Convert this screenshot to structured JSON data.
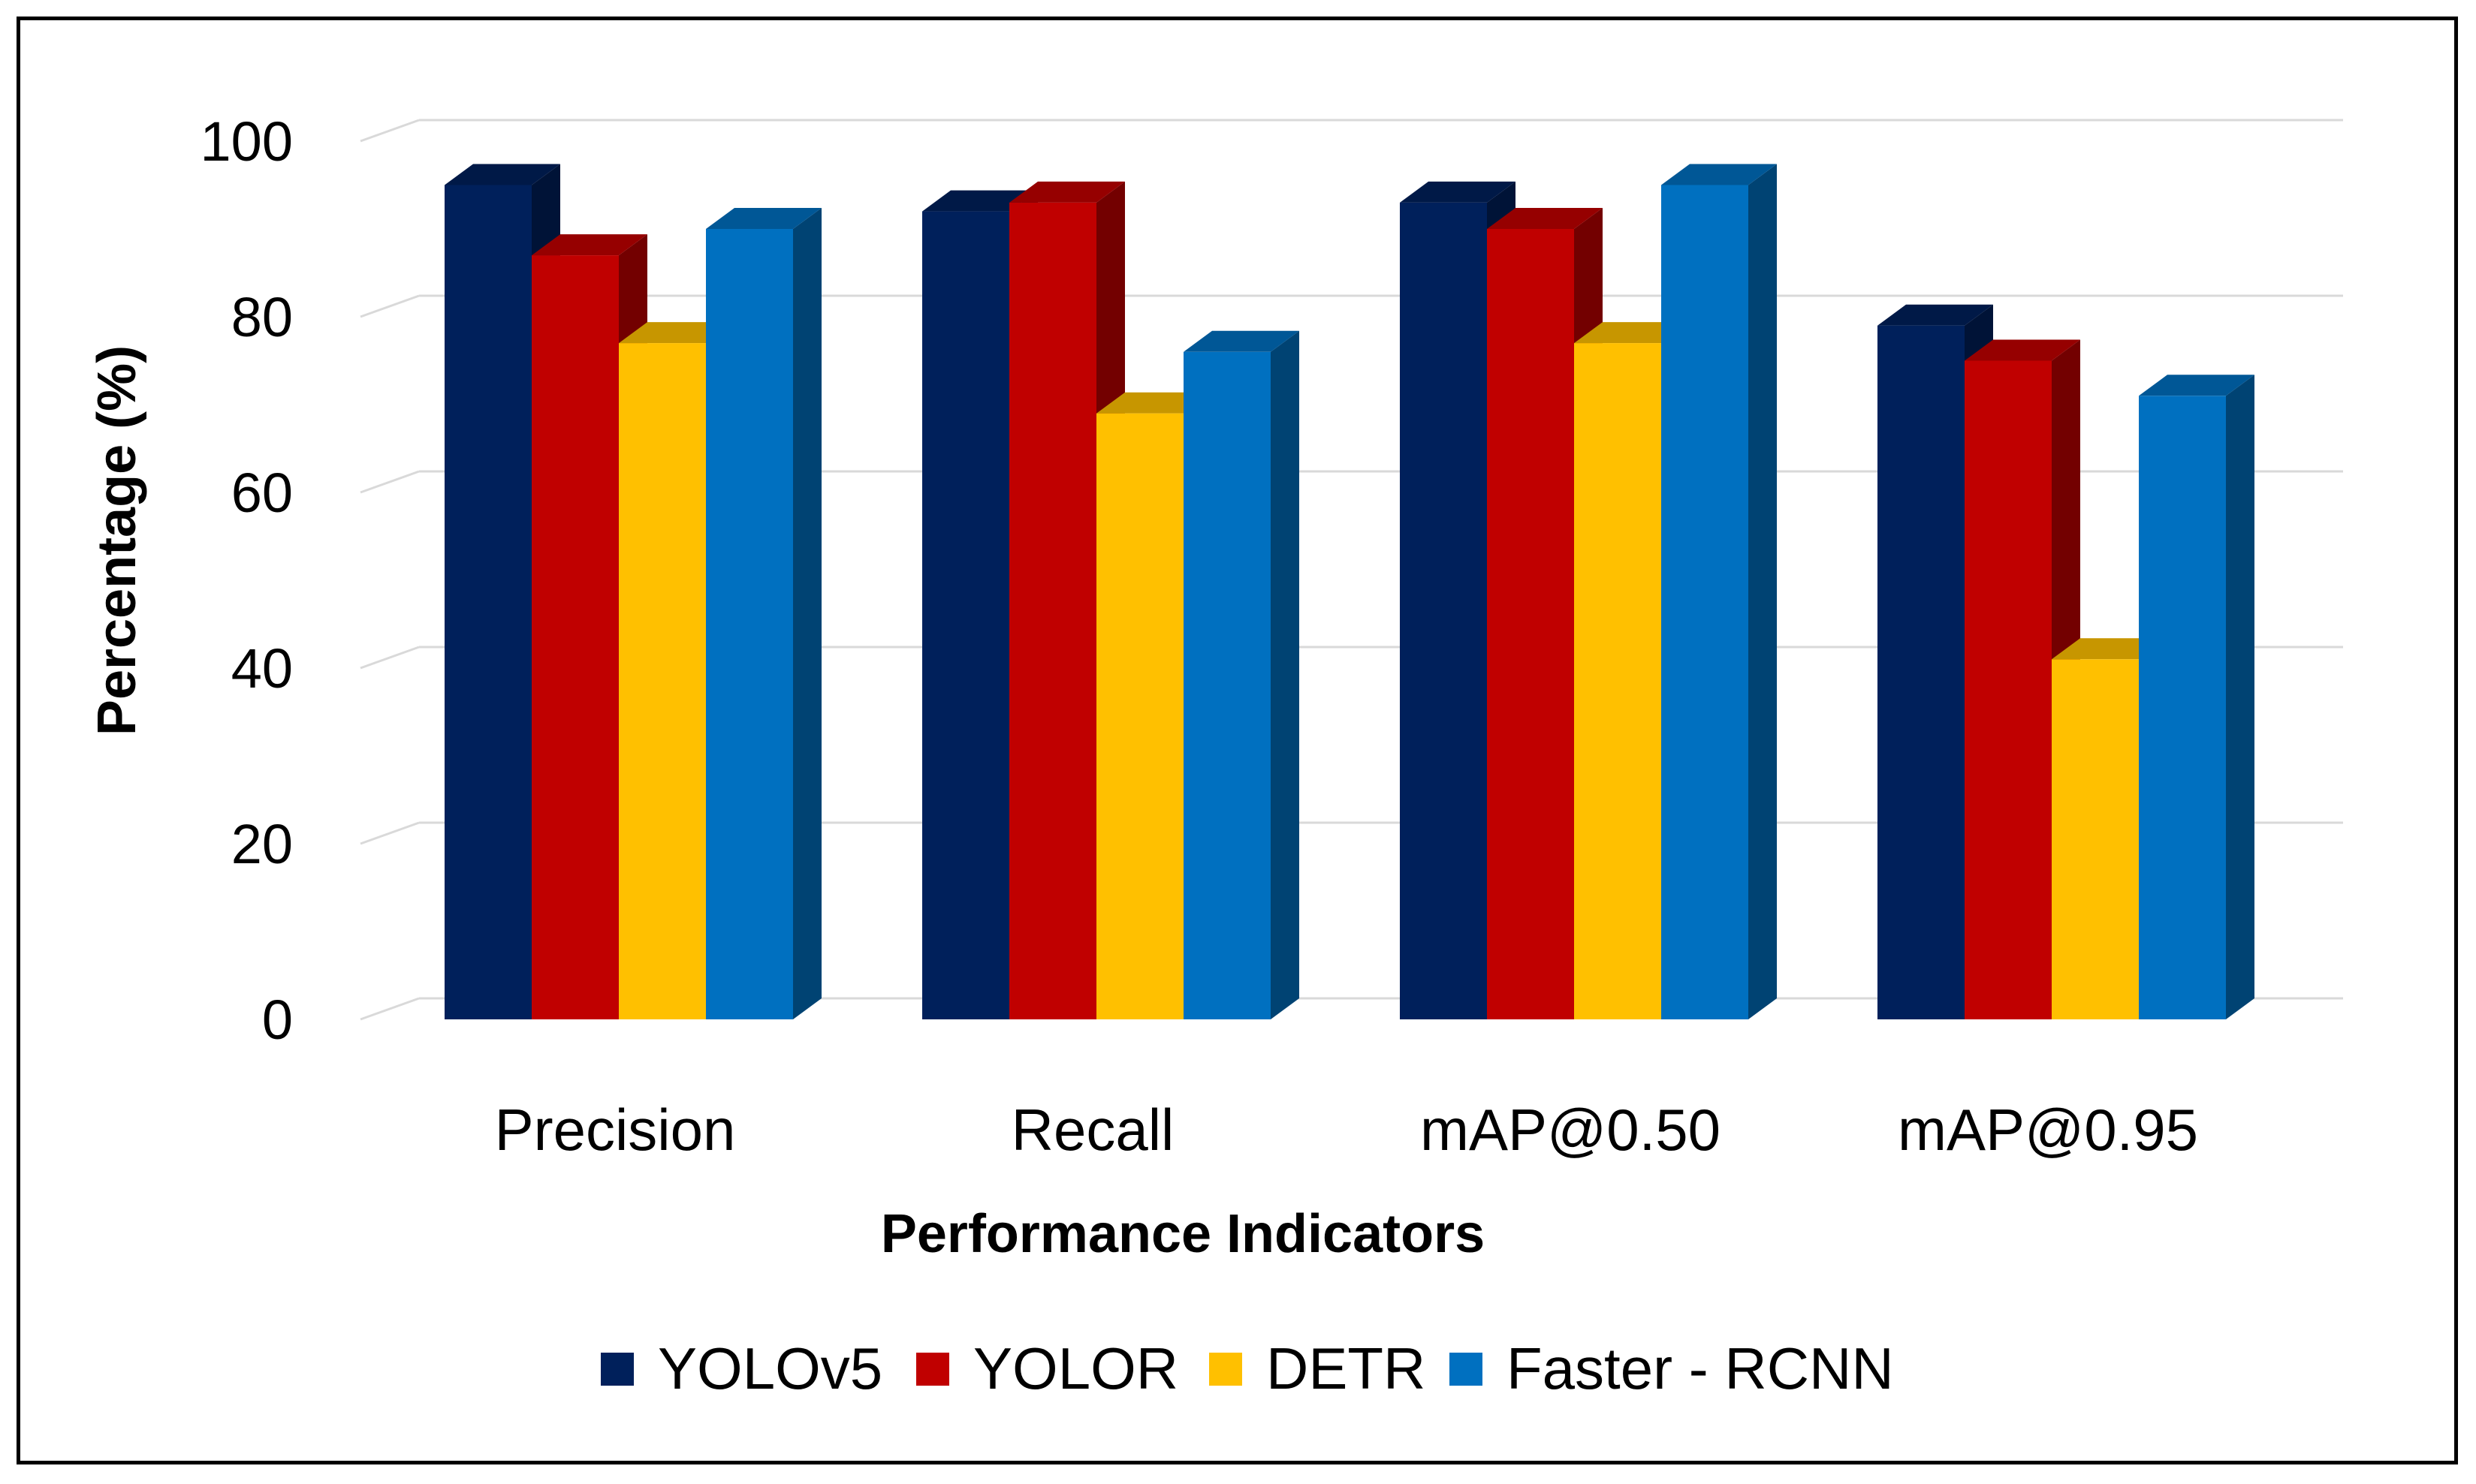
{
  "chart_data": {
    "type": "bar",
    "style": "3d-clustered-column",
    "title": "",
    "xlabel": "Performance Indicators",
    "ylabel": "Percentage (%)",
    "ylim": [
      0,
      100
    ],
    "yticks": [
      0,
      20,
      40,
      60,
      80,
      100
    ],
    "yticks_labels": [
      "0",
      "20",
      "40",
      "60",
      "80",
      "100"
    ],
    "grid": true,
    "legend_position": "bottom",
    "categories": [
      "Precision",
      "Recall",
      "mAP@0.50",
      "mAP@0.95"
    ],
    "series": [
      {
        "name": "YOLOv5",
        "color": "#00205B",
        "values": [
          95,
          92,
          93,
          79
        ]
      },
      {
        "name": "YOLOR",
        "color": "#C00000",
        "values": [
          87,
          93,
          90,
          75
        ]
      },
      {
        "name": "DETR",
        "color": "#FFC000",
        "values": [
          77,
          69,
          77,
          41
        ]
      },
      {
        "name": "Faster - RCNN",
        "color": "#0070C0",
        "values": [
          90,
          76,
          95,
          71
        ]
      }
    ]
  }
}
